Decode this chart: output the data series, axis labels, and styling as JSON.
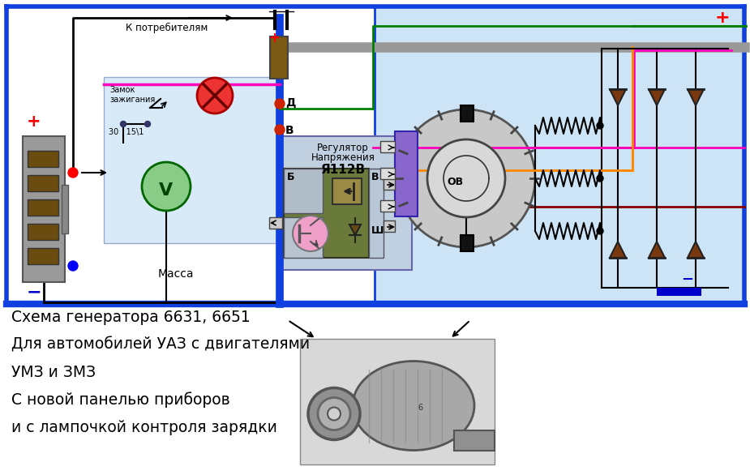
{
  "bg_color": "#ffffff",
  "light_blue_bg": "#cce4f5",
  "instr_bg": "#d8eaf8",
  "blue_wire": "#1040e0",
  "green_wire": "#008000",
  "pink_wire": "#ff00bb",
  "orange_wire": "#ff8800",
  "dark_red_wire": "#880000",
  "red_color": "#ff0000",
  "blue_color": "#0000cc",
  "gray_bar": "#aaaaaa",
  "brown_connector": "#6b4c10",
  "text_lines": [
    "Схема генератора 6631, 6651",
    "Для автомобилей УАЗ с двигателями",
    "УМЗ и ЗМЗ",
    "С новой панелью приборов",
    "и с лампочкой контроля зарядки"
  ]
}
